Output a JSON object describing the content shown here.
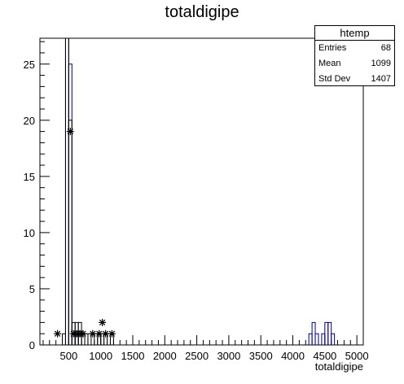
{
  "chart_data": {
    "type": "bar",
    "title": "totaldigipe",
    "xlabel": "totaldigipe",
    "ylabel": "",
    "xlim": [
      50,
      5100
    ],
    "ylim": [
      0,
      27.3
    ],
    "x_ticks": [
      500,
      1000,
      1500,
      2000,
      2500,
      3000,
      3500,
      4000,
      4500,
      5000
    ],
    "y_ticks": [
      0,
      5,
      10,
      15,
      20,
      25
    ],
    "bin_width": 50,
    "series": [
      {
        "style": "histogram",
        "color": "#000080",
        "bins": [
          {
            "x": 50,
            "y": 0
          },
          {
            "x": 100,
            "y": 0
          },
          {
            "x": 150,
            "y": 0
          },
          {
            "x": 200,
            "y": 0
          },
          {
            "x": 250,
            "y": 0
          },
          {
            "x": 300,
            "y": 0
          },
          {
            "x": 350,
            "y": 0
          },
          {
            "x": 400,
            "y": 0
          },
          {
            "x": 450,
            "y": 28
          },
          {
            "x": 500,
            "y": 25
          },
          {
            "x": 550,
            "y": 1
          },
          {
            "x": 600,
            "y": 1
          },
          {
            "x": 650,
            "y": 1
          },
          {
            "x": 700,
            "y": 0
          },
          {
            "x": 750,
            "y": 0
          },
          {
            "x": 800,
            "y": 0
          },
          {
            "x": 850,
            "y": 0
          },
          {
            "x": 900,
            "y": 0
          },
          {
            "x": 950,
            "y": 0
          },
          {
            "x": 1000,
            "y": 0
          },
          {
            "x": 4250,
            "y": 1
          },
          {
            "x": 4300,
            "y": 2
          },
          {
            "x": 4350,
            "y": 1
          },
          {
            "x": 4400,
            "y": 0
          },
          {
            "x": 4450,
            "y": 1
          },
          {
            "x": 4500,
            "y": 2
          },
          {
            "x": 4550,
            "y": 2
          },
          {
            "x": 4600,
            "y": 1
          }
        ]
      },
      {
        "style": "histogram",
        "color": "#000000",
        "bins": [
          {
            "x": 400,
            "y": 1
          },
          {
            "x": 450,
            "y": 28
          },
          {
            "x": 500,
            "y": 20
          },
          {
            "x": 550,
            "y": 2
          },
          {
            "x": 600,
            "y": 2
          },
          {
            "x": 650,
            "y": 2
          },
          {
            "x": 700,
            "y": 1
          },
          {
            "x": 750,
            "y": 1
          },
          {
            "x": 800,
            "y": 1
          },
          {
            "x": 850,
            "y": 0
          },
          {
            "x": 900,
            "y": 1
          },
          {
            "x": 950,
            "y": 1
          },
          {
            "x": 1000,
            "y": 1
          },
          {
            "x": 1050,
            "y": 1
          },
          {
            "x": 1100,
            "y": 1
          },
          {
            "x": 1150,
            "y": 1
          }
        ]
      },
      {
        "style": "markers",
        "color": "#000000",
        "points": [
          {
            "x": 325,
            "y": 1
          },
          {
            "x": 525,
            "y": 19
          },
          {
            "x": 575,
            "y": 1
          },
          {
            "x": 625,
            "y": 1
          },
          {
            "x": 675,
            "y": 1
          },
          {
            "x": 725,
            "y": 1
          },
          {
            "x": 875,
            "y": 1
          },
          {
            "x": 975,
            "y": 1
          },
          {
            "x": 1025,
            "y": 2
          },
          {
            "x": 1075,
            "y": 1
          },
          {
            "x": 1175,
            "y": 1
          }
        ]
      }
    ],
    "stats": {
      "name": "htemp",
      "entries_label": "Entries",
      "entries": "68",
      "mean_label": "Mean",
      "mean": "1099",
      "stddev_label": "Std Dev",
      "stddev": "1407"
    }
  }
}
